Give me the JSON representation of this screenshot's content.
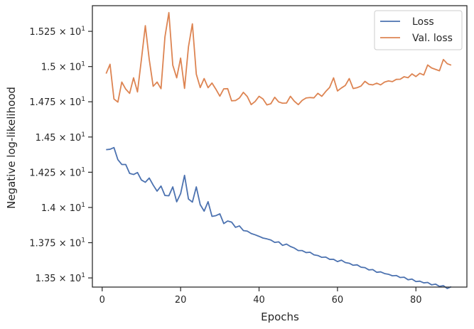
{
  "chart_data": {
    "type": "line",
    "title": "",
    "xlabel": "Epochs",
    "ylabel": "Negative log-likelihood",
    "xlim": [
      -2.5,
      93
    ],
    "ylim": [
      13.435,
      15.432
    ],
    "xticks": [
      0,
      20,
      40,
      60,
      80
    ],
    "yticks": [
      13.5,
      13.75,
      14.0,
      14.25,
      14.5,
      14.75,
      15.0,
      15.25
    ],
    "yticklabels": [
      "1.35 × 10^1",
      "1.375 × 10^1",
      "1.4 × 10^1",
      "1.425 × 10^1",
      "1.45 × 10^1",
      "1.475 × 10^1",
      "1.5 × 10^1",
      "1.525 × 10^1"
    ],
    "legend_position": "top-right",
    "grid": false,
    "x": [
      1,
      2,
      3,
      4,
      5,
      6,
      7,
      8,
      9,
      10,
      11,
      12,
      13,
      14,
      15,
      16,
      17,
      18,
      19,
      20,
      21,
      22,
      23,
      24,
      25,
      26,
      27,
      28,
      29,
      30,
      31,
      32,
      33,
      34,
      35,
      36,
      37,
      38,
      39,
      40,
      41,
      42,
      43,
      44,
      45,
      46,
      47,
      48,
      49,
      50,
      51,
      52,
      53,
      54,
      55,
      56,
      57,
      58,
      59,
      60,
      61,
      62,
      63,
      64,
      65,
      66,
      67,
      68,
      69,
      70,
      71,
      72,
      73,
      74,
      75,
      76,
      77,
      78,
      79,
      80,
      81,
      82,
      83,
      84,
      85,
      86,
      87,
      88,
      89
    ],
    "series": [
      {
        "name": "Loss",
        "color": "#4c72b0",
        "values": [
          14.41,
          14.413,
          14.425,
          14.339,
          14.305,
          14.305,
          14.242,
          14.234,
          14.248,
          14.195,
          14.179,
          14.209,
          14.159,
          14.116,
          14.152,
          14.085,
          14.083,
          14.146,
          14.04,
          14.098,
          14.228,
          14.06,
          14.038,
          14.146,
          14.02,
          13.974,
          14.041,
          13.937,
          13.942,
          13.955,
          13.886,
          13.904,
          13.896,
          13.859,
          13.869,
          13.836,
          13.832,
          13.815,
          13.806,
          13.795,
          13.783,
          13.777,
          13.769,
          13.752,
          13.756,
          13.731,
          13.74,
          13.723,
          13.712,
          13.694,
          13.694,
          13.68,
          13.682,
          13.664,
          13.659,
          13.646,
          13.648,
          13.632,
          13.632,
          13.616,
          13.626,
          13.609,
          13.604,
          13.59,
          13.593,
          13.576,
          13.573,
          13.557,
          13.559,
          13.54,
          13.543,
          13.531,
          13.526,
          13.515,
          13.517,
          13.503,
          13.505,
          13.487,
          13.492,
          13.474,
          13.477,
          13.465,
          13.468,
          13.451,
          13.456,
          13.44,
          13.445,
          13.425,
          13.437
        ]
      },
      {
        "name": "Val. loss",
        "color": "#dd8452",
        "values": [
          14.95,
          15.016,
          14.77,
          14.748,
          14.89,
          14.84,
          14.81,
          14.92,
          14.82,
          15.05,
          15.29,
          15.05,
          14.86,
          14.89,
          14.843,
          15.21,
          15.383,
          15.01,
          14.92,
          15.06,
          14.845,
          15.14,
          15.303,
          14.946,
          14.851,
          14.915,
          14.85,
          14.883,
          14.839,
          14.79,
          14.842,
          14.843,
          14.757,
          14.759,
          14.777,
          14.817,
          14.787,
          14.73,
          14.752,
          14.789,
          14.77,
          14.728,
          14.736,
          14.782,
          14.749,
          14.74,
          14.741,
          14.789,
          14.754,
          14.73,
          14.76,
          14.777,
          14.78,
          14.778,
          14.81,
          14.789,
          14.823,
          14.852,
          14.92,
          14.827,
          14.848,
          14.866,
          14.915,
          14.844,
          14.85,
          14.862,
          14.895,
          14.874,
          14.87,
          14.882,
          14.87,
          14.89,
          14.898,
          14.893,
          14.909,
          14.91,
          14.928,
          14.921,
          14.948,
          14.929,
          14.952,
          14.94,
          15.011,
          14.99,
          14.98,
          14.97,
          15.05,
          15.02,
          15.01
        ]
      }
    ]
  }
}
